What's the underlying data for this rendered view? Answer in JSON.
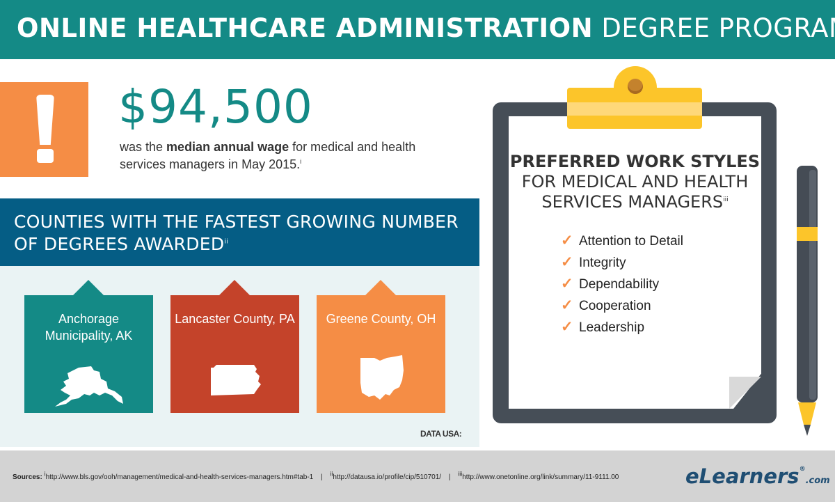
{
  "header": {
    "title_bold": "ONLINE HEALTHCARE ADMINISTRATION",
    "title_light": "DEGREE PROGRAMS"
  },
  "wage": {
    "amount": "$94,500",
    "text_before": "was the ",
    "text_bold": "median annual wage",
    "text_after": " for medical and health services managers in May 2015.",
    "footnote": "i"
  },
  "counties": {
    "title": "COUNTIES WITH THE FASTEST GROWING NUMBER OF DEGREES AWARDED",
    "footnote": "ii",
    "cards": [
      {
        "name": "Anchorage Municipality, AK",
        "color": "#148a86",
        "icon": "alaska-icon"
      },
      {
        "name": "Lancaster County, PA",
        "color": "#c4432a",
        "icon": "pennsylvania-icon"
      },
      {
        "name": "Greene County, OH",
        "color": "#f58d45",
        "icon": "ohio-icon"
      }
    ],
    "credit": "DATA USA:"
  },
  "work_styles": {
    "title_bold": "PREFERRED WORK STYLES",
    "title_rest": "FOR MEDICAL AND HEALTH SERVICES MANAGERS",
    "footnote": "iii",
    "check_symbol": "✓",
    "items": [
      "Attention to Detail",
      "Integrity",
      "Dependability",
      "Cooperation",
      "Leadership"
    ]
  },
  "footer": {
    "sources_label": "Sources:",
    "source_1_mark": "i",
    "source_1": "http://www.bls.gov/ooh/management/medical-and-health-services-managers.htm#tab-1",
    "separator": "|",
    "source_2_mark": "ii",
    "source_2": "http://datausa.io/profile/cip/510701/",
    "source_3_mark": "iii",
    "source_3": "http://www.onetonline.org/link/summary/11-9111.00",
    "logo_main": "eLearners",
    "logo_reg": "®",
    "logo_suffix": ".com"
  },
  "colors": {
    "teal": "#148a86",
    "navy": "#055d85",
    "orange": "#f58d45",
    "red": "#c4432a",
    "yellow": "#fcc52a",
    "slate": "#464e57"
  }
}
